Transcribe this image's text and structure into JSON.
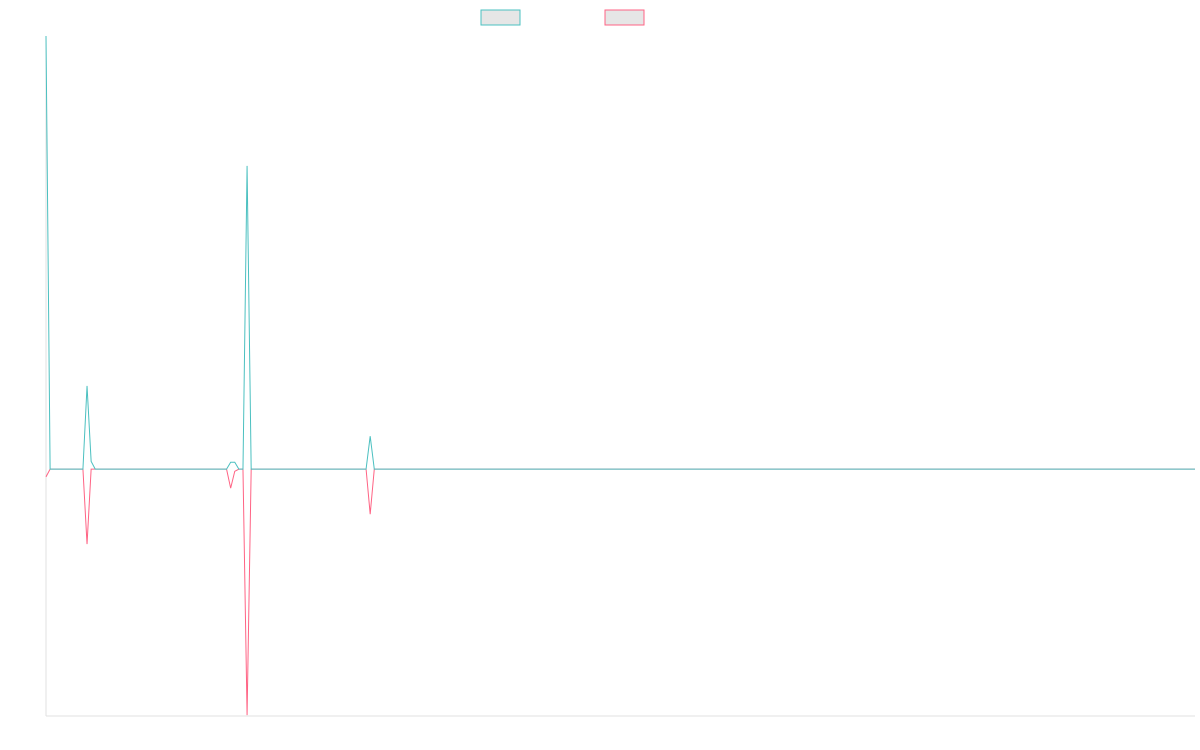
{
  "chart_data": {
    "type": "line",
    "x": [
      0,
      1,
      9,
      10,
      11,
      12,
      44,
      45,
      46,
      47,
      48,
      49,
      50,
      78,
      79,
      80,
      280
    ],
    "xlim": [
      0,
      280
    ],
    "ylim": [
      -57,
      100
    ],
    "series": [
      {
        "color": "#4bc0c0",
        "values": [
          100,
          0,
          0,
          19.2,
          1.8,
          0,
          0,
          1.6,
          1.6,
          0,
          0,
          70,
          0,
          0,
          7.6,
          0,
          0
        ]
      },
      {
        "color": "#ff6384",
        "values": [
          -1.8,
          0,
          0,
          -17.3,
          0,
          0,
          0,
          -4.4,
          -0.5,
          0,
          0,
          -56.8,
          0,
          0,
          -10.4,
          0,
          0
        ]
      }
    ]
  }
}
